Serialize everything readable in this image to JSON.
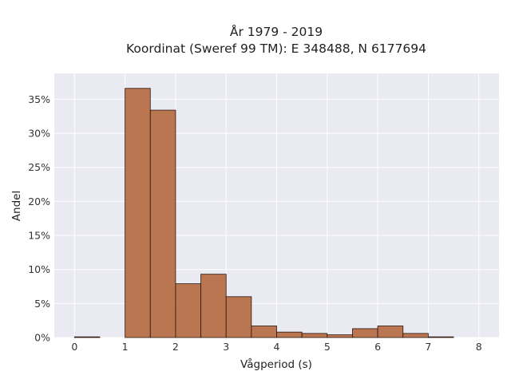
{
  "chart_data": {
    "type": "bar",
    "title_lines": [
      "År 1979 - 2019",
      "Koordinat (Sweref 99 TM): E 348488, N 6177694"
    ],
    "xlabel": "Vågperiod (s)",
    "ylabel": "Andel",
    "xlim": [
      -0.4,
      8.4
    ],
    "ylim": [
      0,
      38.8
    ],
    "x_ticks": [
      0,
      1,
      2,
      3,
      4,
      5,
      6,
      7,
      8
    ],
    "x_tick_labels": [
      "0",
      "1",
      "2",
      "3",
      "4",
      "5",
      "6",
      "7",
      "8"
    ],
    "y_ticks": [
      0,
      5,
      10,
      15,
      20,
      25,
      30,
      35
    ],
    "y_tick_labels": [
      "0%",
      "5%",
      "10%",
      "15%",
      "20%",
      "25%",
      "30%",
      "35%"
    ],
    "grid": true,
    "bin_width": 0.5,
    "bins": [
      {
        "start": 0.0,
        "value": 0.1
      },
      {
        "start": 0.5,
        "value": 0.0
      },
      {
        "start": 1.0,
        "value": 36.6
      },
      {
        "start": 1.5,
        "value": 33.4
      },
      {
        "start": 2.0,
        "value": 7.9
      },
      {
        "start": 2.5,
        "value": 9.3
      },
      {
        "start": 3.0,
        "value": 6.0
      },
      {
        "start": 3.5,
        "value": 1.7
      },
      {
        "start": 4.0,
        "value": 0.8
      },
      {
        "start": 4.5,
        "value": 0.6
      },
      {
        "start": 5.0,
        "value": 0.4
      },
      {
        "start": 5.5,
        "value": 1.3
      },
      {
        "start": 6.0,
        "value": 1.7
      },
      {
        "start": 6.5,
        "value": 0.6
      },
      {
        "start": 7.0,
        "value": 0.1
      },
      {
        "start": 7.5,
        "value": 0.0
      }
    ],
    "colors": {
      "bar": "#b5683f",
      "bar_edge": "#2a160c",
      "plot_background": "#eaeaf2",
      "grid": "#ffffff"
    }
  }
}
